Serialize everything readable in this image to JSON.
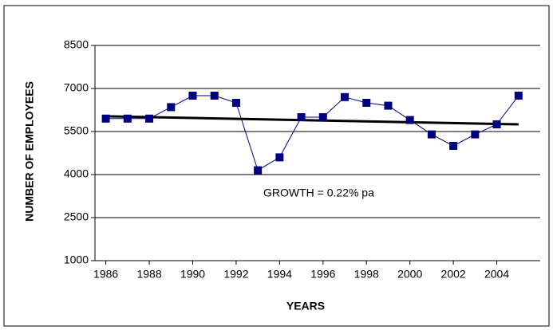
{
  "chart_data": {
    "type": "line",
    "x_label": "YEARS",
    "y_label": "NUMBER OF EMPLOYEES",
    "annotation": "GROWTH = 0.22% pa",
    "x": [
      1986,
      1987,
      1988,
      1989,
      1990,
      1991,
      1992,
      1993,
      1994,
      1995,
      1996,
      1997,
      1998,
      1999,
      2000,
      2001,
      2002,
      2003,
      2004,
      2005
    ],
    "series": [
      {
        "color": "#000080",
        "values": [
          5950,
          5950,
          5950,
          6350,
          6750,
          6750,
          6500,
          4150,
          4600,
          6000,
          6000,
          6700,
          6500,
          6400,
          5900,
          5400,
          5000,
          5400,
          5750,
          6750
        ]
      }
    ],
    "trendline": {
      "color": "#000000",
      "x": [
        1986,
        2005
      ],
      "values": [
        6030,
        5750
      ]
    },
    "xlim": [
      1985.5,
      2006
    ],
    "xticks": [
      1986,
      1988,
      1990,
      1992,
      1994,
      1996,
      1998,
      2000,
      2002,
      2004
    ],
    "ylim": [
      1000,
      8500
    ],
    "yticks": [
      1000,
      2500,
      4000,
      5500,
      7000,
      8500
    ],
    "grid": true
  }
}
